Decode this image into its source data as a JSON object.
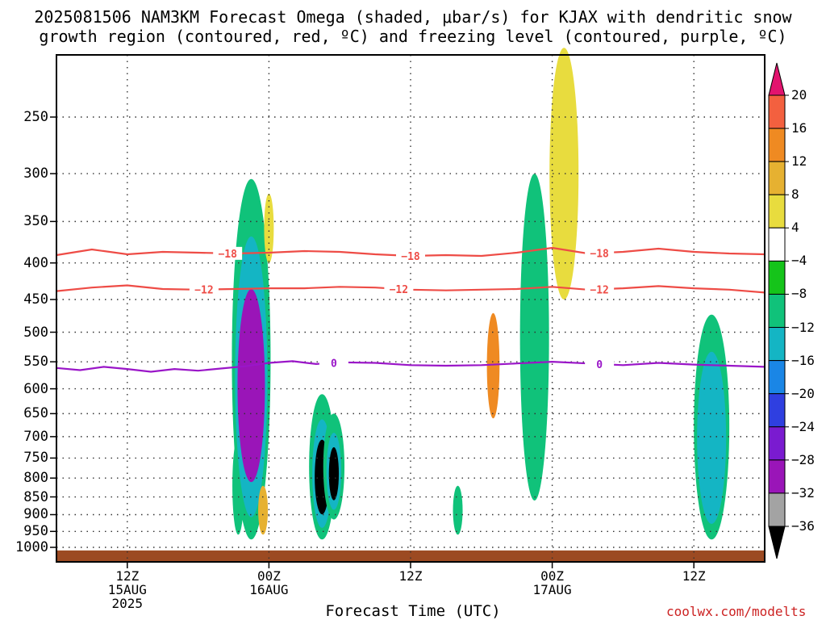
{
  "title": {
    "line1": "2025081506 NAM3KM Forecast Omega (shaded, μbar/s) for KJAX with dendritic snow",
    "line2": "growth region (contoured, red, ºC) and freezing level (contoured, purple, ºC)"
  },
  "xlabel": "Forecast Time (UTC)",
  "credit": "coolwx.com/modelts",
  "chart_data": {
    "type": "heatmap",
    "y_axis": {
      "kind": "pressure (log scale)",
      "ticks": [
        250,
        300,
        350,
        400,
        450,
        500,
        550,
        600,
        650,
        700,
        750,
        800,
        850,
        900,
        950,
        1000
      ],
      "range": [
        200,
        1025
      ]
    },
    "x_axis": {
      "ticks": [
        {
          "hour": 12,
          "lines": [
            "12Z",
            "15AUG",
            "2025"
          ]
        },
        {
          "hour": 24,
          "lines": [
            "00Z",
            "16AUG"
          ]
        },
        {
          "hour": 36,
          "lines": [
            "12Z"
          ]
        },
        {
          "hour": 48,
          "lines": [
            "00Z",
            "17AUG"
          ]
        },
        {
          "hour": 60,
          "lines": [
            "12Z"
          ]
        }
      ],
      "range_hours": [
        6,
        66
      ],
      "grid": true
    },
    "colorbar": {
      "labels": [
        "20",
        "16",
        "12",
        "8",
        "4",
        "−4",
        "−8",
        "−12",
        "−16",
        "−20",
        "−24",
        "−28",
        "−32",
        "−36"
      ],
      "colors": [
        "#e2136e",
        "#f3603f",
        "#ef8a22",
        "#e6b131",
        "#e8dc3e",
        "#ffffff",
        "#15c41a",
        "#10c27a",
        "#14b5c4",
        "#1a86e6",
        "#2f3fe0",
        "#7a1bd0",
        "#9a15b8",
        "#a3a3a3",
        "#000000"
      ]
    },
    "contours": [
      {
        "label": "−18",
        "color": "#ee4c46",
        "points": [
          [
            6,
            390
          ],
          [
            9,
            383
          ],
          [
            12,
            389
          ],
          [
            15,
            386
          ],
          [
            18,
            387
          ],
          [
            21,
            388
          ],
          [
            24,
            387
          ],
          [
            27,
            385
          ],
          [
            30,
            386
          ],
          [
            33,
            389
          ],
          [
            36,
            391
          ],
          [
            39,
            390
          ],
          [
            42,
            391
          ],
          [
            45,
            387
          ],
          [
            48,
            381
          ],
          [
            51,
            388
          ],
          [
            54,
            386
          ],
          [
            57,
            382
          ],
          [
            60,
            386
          ],
          [
            63,
            388
          ],
          [
            66,
            389
          ]
        ],
        "label_hours": [
          20.5,
          36,
          52
        ]
      },
      {
        "label": "−12",
        "color": "#ee4c46",
        "points": [
          [
            6,
            438
          ],
          [
            9,
            433
          ],
          [
            12,
            430
          ],
          [
            15,
            435
          ],
          [
            18,
            436
          ],
          [
            21,
            435
          ],
          [
            24,
            434
          ],
          [
            27,
            434
          ],
          [
            30,
            432
          ],
          [
            33,
            433
          ],
          [
            36,
            436
          ],
          [
            39,
            437
          ],
          [
            42,
            436
          ],
          [
            45,
            435
          ],
          [
            48,
            432
          ],
          [
            51,
            436
          ],
          [
            54,
            434
          ],
          [
            57,
            431
          ],
          [
            60,
            434
          ],
          [
            63,
            436
          ],
          [
            66,
            440
          ]
        ],
        "label_hours": [
          18.5,
          35,
          52
        ]
      },
      {
        "label": "0",
        "color": "#9a16c8",
        "points": [
          [
            6,
            561
          ],
          [
            8,
            565
          ],
          [
            10,
            559
          ],
          [
            12,
            563
          ],
          [
            14,
            568
          ],
          [
            16,
            563
          ],
          [
            18,
            566
          ],
          [
            20,
            562
          ],
          [
            22,
            558
          ],
          [
            24,
            552
          ],
          [
            26,
            549
          ],
          [
            28,
            554
          ],
          [
            30,
            551
          ],
          [
            33,
            552
          ],
          [
            36,
            556
          ],
          [
            39,
            557
          ],
          [
            42,
            556
          ],
          [
            45,
            553
          ],
          [
            48,
            550
          ],
          [
            51,
            553
          ],
          [
            54,
            556
          ],
          [
            57,
            552
          ],
          [
            60,
            555
          ],
          [
            63,
            557
          ],
          [
            66,
            559
          ]
        ],
        "label_hours": [
          29.5,
          52
        ]
      }
    ],
    "omega_features": [
      {
        "hour": 21.4,
        "p_top": 700,
        "p_bot": 960,
        "value": -8
      },
      {
        "hour": 22.5,
        "p_top": 310,
        "p_bot": 960,
        "value": -30
      },
      {
        "hour": 23.5,
        "p_top": 820,
        "p_bot": 960,
        "value": 8
      },
      {
        "hour": 24.0,
        "p_top": 320,
        "p_bot": 400,
        "value": 4
      },
      {
        "hour": 28.5,
        "p_top": 620,
        "p_bot": 960,
        "value": -36
      },
      {
        "hour": 29.5,
        "p_top": 660,
        "p_bot": 900,
        "value": -36
      },
      {
        "hour": 40.0,
        "p_top": 820,
        "p_bot": 960,
        "value": -8
      },
      {
        "hour": 43.0,
        "p_top": 470,
        "p_bot": 660,
        "value": 12
      },
      {
        "hour": 46.5,
        "p_top": 300,
        "p_bot": 860,
        "value": -8
      },
      {
        "hour": 49.0,
        "p_top": 200,
        "p_bot": 450,
        "value": 4
      },
      {
        "hour": 61.5,
        "p_top": 480,
        "p_bot": 960,
        "value": -12
      }
    ]
  }
}
